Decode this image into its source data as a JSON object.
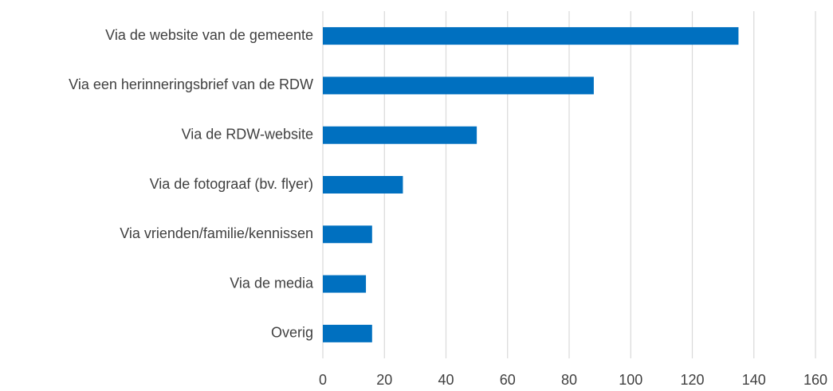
{
  "chart_data": {
    "type": "hbar",
    "categories": [
      "Via de website van de gemeente",
      "Via een herinneringsbrief van de RDW",
      "Via de RDW-website",
      "Via de fotograaf (bv. flyer)",
      "Via vrienden/familie/kennissen",
      "Via de media",
      "Overig"
    ],
    "values": [
      135,
      88,
      50,
      26,
      16,
      14,
      16
    ],
    "color": "#0070c0",
    "xlim": [
      0,
      160
    ],
    "xticks": [
      0,
      20,
      40,
      60,
      80,
      100,
      120,
      140,
      160
    ],
    "grid": true
  }
}
